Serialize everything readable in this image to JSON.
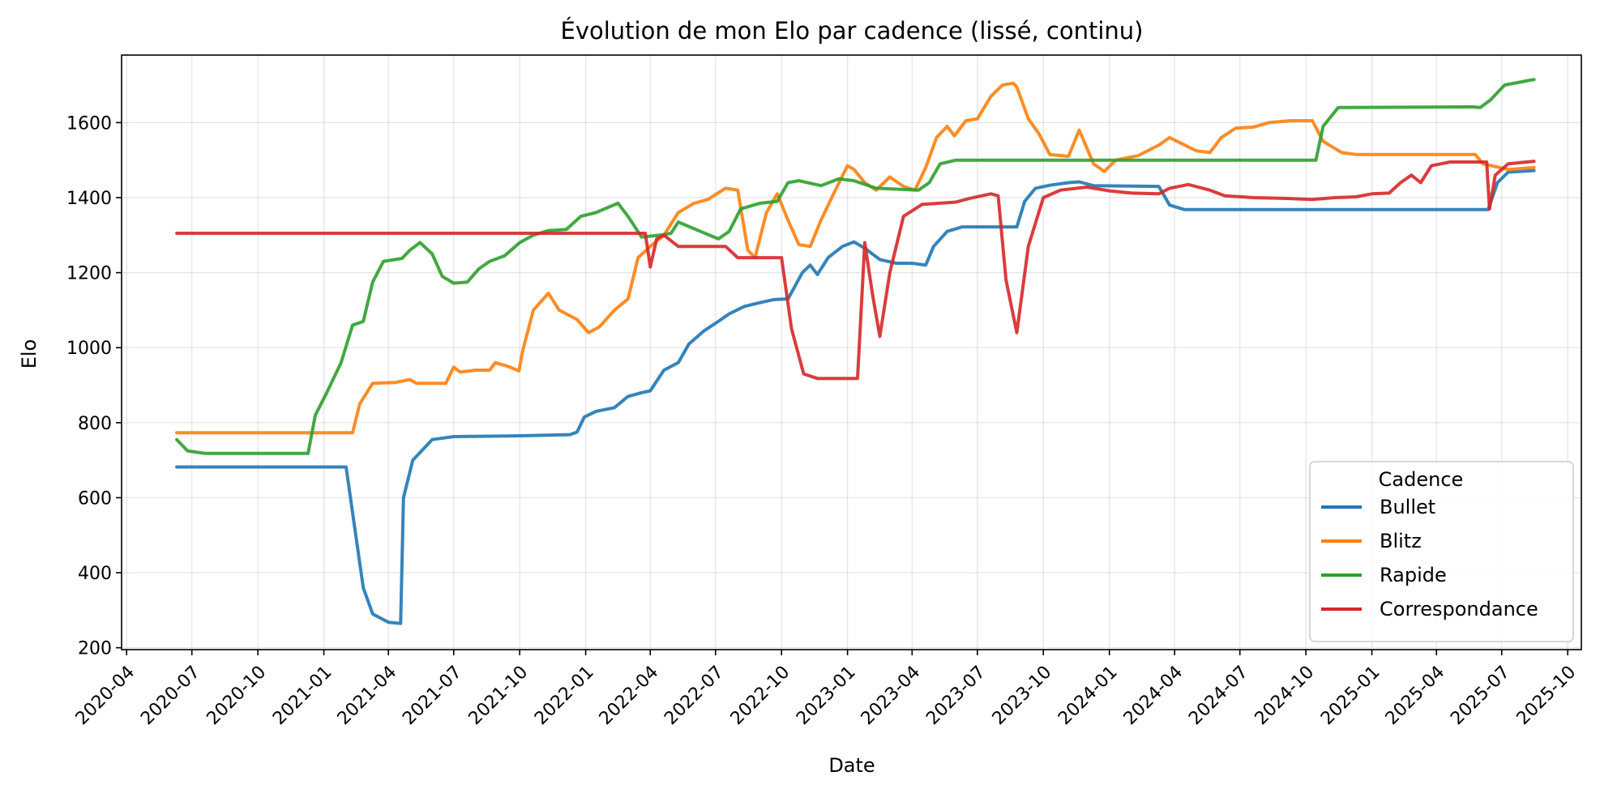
{
  "chart_data": {
    "type": "line",
    "title": "Évolution de mon Elo par cadence (lissé, continu)",
    "xlabel": "Date",
    "ylabel": "Elo",
    "x_type": "date",
    "xlim": [
      "2020-03-25",
      "2025-10-20"
    ],
    "ylim": [
      195,
      1780
    ],
    "yticks": [
      200,
      400,
      600,
      800,
      1000,
      1200,
      1400,
      1600
    ],
    "xticks": [
      "2020-04",
      "2020-07",
      "2020-10",
      "2021-01",
      "2021-04",
      "2021-07",
      "2021-10",
      "2022-01",
      "2022-04",
      "2022-07",
      "2022-10",
      "2023-01",
      "2023-04",
      "2023-07",
      "2023-10",
      "2024-01",
      "2024-04",
      "2024-07",
      "2024-10",
      "2025-01",
      "2025-04",
      "2025-07",
      "2025-10"
    ],
    "grid": true,
    "legend": {
      "title": "Cadence",
      "position": "lower-right"
    },
    "series": [
      {
        "name": "Bullet",
        "color": "#1f77b4",
        "points": [
          [
            "2020-06-10",
            682
          ],
          [
            "2021-02-01",
            682
          ],
          [
            "2021-02-10",
            560
          ],
          [
            "2021-02-25",
            360
          ],
          [
            "2021-03-10",
            290
          ],
          [
            "2021-04-01",
            268
          ],
          [
            "2021-04-18",
            265
          ],
          [
            "2021-04-22",
            600
          ],
          [
            "2021-05-05",
            700
          ],
          [
            "2021-06-01",
            755
          ],
          [
            "2021-07-01",
            763
          ],
          [
            "2021-10-01",
            765
          ],
          [
            "2021-12-10",
            768
          ],
          [
            "2021-12-20",
            775
          ],
          [
            "2021-12-30",
            815
          ],
          [
            "2022-01-15",
            830
          ],
          [
            "2022-02-10",
            840
          ],
          [
            "2022-03-01",
            870
          ],
          [
            "2022-03-20",
            880
          ],
          [
            "2022-04-01",
            885
          ],
          [
            "2022-04-20",
            940
          ],
          [
            "2022-05-10",
            960
          ],
          [
            "2022-05-25",
            1010
          ],
          [
            "2022-06-15",
            1045
          ],
          [
            "2022-07-01",
            1065
          ],
          [
            "2022-07-20",
            1090
          ],
          [
            "2022-08-10",
            1110
          ],
          [
            "2022-09-01",
            1120
          ],
          [
            "2022-09-20",
            1128
          ],
          [
            "2022-10-10",
            1130
          ],
          [
            "2022-10-30",
            1200
          ],
          [
            "2022-11-10",
            1220
          ],
          [
            "2022-11-20",
            1195
          ],
          [
            "2022-12-05",
            1240
          ],
          [
            "2022-12-25",
            1270
          ],
          [
            "2023-01-10",
            1282
          ],
          [
            "2023-01-25",
            1265
          ],
          [
            "2023-02-15",
            1235
          ],
          [
            "2023-03-10",
            1225
          ],
          [
            "2023-04-01",
            1225
          ],
          [
            "2023-04-20",
            1220
          ],
          [
            "2023-05-01",
            1270
          ],
          [
            "2023-05-20",
            1310
          ],
          [
            "2023-06-10",
            1322
          ],
          [
            "2023-08-25",
            1322
          ],
          [
            "2023-09-05",
            1390
          ],
          [
            "2023-09-20",
            1425
          ],
          [
            "2023-10-10",
            1433
          ],
          [
            "2023-11-05",
            1440
          ],
          [
            "2023-11-20",
            1442
          ],
          [
            "2023-12-10",
            1432
          ],
          [
            "2024-03-10",
            1430
          ],
          [
            "2024-03-25",
            1380
          ],
          [
            "2024-04-15",
            1368
          ],
          [
            "2025-06-12",
            1368
          ],
          [
            "2025-06-25",
            1440
          ],
          [
            "2025-07-10",
            1468
          ],
          [
            "2025-08-15",
            1472
          ]
        ]
      },
      {
        "name": "Blitz",
        "color": "#ff7f0e",
        "points": [
          [
            "2020-06-10",
            773
          ],
          [
            "2021-02-10",
            773
          ],
          [
            "2021-02-20",
            850
          ],
          [
            "2021-03-10",
            905
          ],
          [
            "2021-04-10",
            907
          ],
          [
            "2021-05-01",
            915
          ],
          [
            "2021-05-10",
            905
          ],
          [
            "2021-06-20",
            905
          ],
          [
            "2021-07-01",
            948
          ],
          [
            "2021-07-10",
            935
          ],
          [
            "2021-08-01",
            940
          ],
          [
            "2021-08-20",
            940
          ],
          [
            "2021-08-28",
            960
          ],
          [
            "2021-09-15",
            950
          ],
          [
            "2021-09-30",
            938
          ],
          [
            "2021-10-05",
            990
          ],
          [
            "2021-10-20",
            1100
          ],
          [
            "2021-11-10",
            1145
          ],
          [
            "2021-11-25",
            1100
          ],
          [
            "2021-12-20",
            1075
          ],
          [
            "2022-01-05",
            1040
          ],
          [
            "2022-01-20",
            1055
          ],
          [
            "2022-02-10",
            1100
          ],
          [
            "2022-03-01",
            1130
          ],
          [
            "2022-03-15",
            1240
          ],
          [
            "2022-04-01",
            1270
          ],
          [
            "2022-04-20",
            1300
          ],
          [
            "2022-05-10",
            1360
          ],
          [
            "2022-06-01",
            1385
          ],
          [
            "2022-06-20",
            1395
          ],
          [
            "2022-07-15",
            1425
          ],
          [
            "2022-08-01",
            1420
          ],
          [
            "2022-08-15",
            1260
          ],
          [
            "2022-08-25",
            1240
          ],
          [
            "2022-09-10",
            1360
          ],
          [
            "2022-09-25",
            1410
          ],
          [
            "2022-10-10",
            1340
          ],
          [
            "2022-10-25",
            1275
          ],
          [
            "2022-11-10",
            1270
          ],
          [
            "2022-11-25",
            1340
          ],
          [
            "2022-12-15",
            1420
          ],
          [
            "2023-01-01",
            1485
          ],
          [
            "2023-01-10",
            1475
          ],
          [
            "2023-01-25",
            1440
          ],
          [
            "2023-02-10",
            1420
          ],
          [
            "2023-03-01",
            1455
          ],
          [
            "2023-03-20",
            1430
          ],
          [
            "2023-04-05",
            1420
          ],
          [
            "2023-04-20",
            1480
          ],
          [
            "2023-05-05",
            1560
          ],
          [
            "2023-05-20",
            1590
          ],
          [
            "2023-05-30",
            1565
          ],
          [
            "2023-06-15",
            1605
          ],
          [
            "2023-07-01",
            1610
          ],
          [
            "2023-07-20",
            1670
          ],
          [
            "2023-08-05",
            1700
          ],
          [
            "2023-08-20",
            1705
          ],
          [
            "2023-08-25",
            1695
          ],
          [
            "2023-09-10",
            1610
          ],
          [
            "2023-09-25",
            1570
          ],
          [
            "2023-10-10",
            1515
          ],
          [
            "2023-11-05",
            1510
          ],
          [
            "2023-11-20",
            1580
          ],
          [
            "2023-12-10",
            1490
          ],
          [
            "2023-12-25",
            1470
          ],
          [
            "2024-01-10",
            1500
          ],
          [
            "2024-02-10",
            1512
          ],
          [
            "2024-03-10",
            1540
          ],
          [
            "2024-03-25",
            1560
          ],
          [
            "2024-04-10",
            1545
          ],
          [
            "2024-05-01",
            1525
          ],
          [
            "2024-05-20",
            1520
          ],
          [
            "2024-06-05",
            1560
          ],
          [
            "2024-06-25",
            1585
          ],
          [
            "2024-07-20",
            1588
          ],
          [
            "2024-08-10",
            1600
          ],
          [
            "2024-09-10",
            1605
          ],
          [
            "2024-10-10",
            1605
          ],
          [
            "2024-10-25",
            1550
          ],
          [
            "2024-11-20",
            1520
          ],
          [
            "2024-12-10",
            1515
          ],
          [
            "2025-05-25",
            1515
          ],
          [
            "2025-06-05",
            1490
          ],
          [
            "2025-07-10",
            1475
          ],
          [
            "2025-08-15",
            1480
          ]
        ]
      },
      {
        "name": "Rapide",
        "color": "#2ca02c",
        "points": [
          [
            "2020-06-10",
            755
          ],
          [
            "2020-06-25",
            725
          ],
          [
            "2020-07-20",
            718
          ],
          [
            "2020-12-10",
            718
          ],
          [
            "2020-12-20",
            820
          ],
          [
            "2021-01-05",
            880
          ],
          [
            "2021-01-25",
            960
          ],
          [
            "2021-02-10",
            1060
          ],
          [
            "2021-02-25",
            1070
          ],
          [
            "2021-03-10",
            1175
          ],
          [
            "2021-03-25",
            1230
          ],
          [
            "2021-04-20",
            1238
          ],
          [
            "2021-05-01",
            1260
          ],
          [
            "2021-05-15",
            1280
          ],
          [
            "2021-06-01",
            1250
          ],
          [
            "2021-06-15",
            1190
          ],
          [
            "2021-07-01",
            1172
          ],
          [
            "2021-07-20",
            1175
          ],
          [
            "2021-08-05",
            1210
          ],
          [
            "2021-08-20",
            1230
          ],
          [
            "2021-09-10",
            1245
          ],
          [
            "2021-10-01",
            1280
          ],
          [
            "2021-10-20",
            1300
          ],
          [
            "2021-11-10",
            1312
          ],
          [
            "2021-12-05",
            1315
          ],
          [
            "2021-12-25",
            1350
          ],
          [
            "2022-01-15",
            1360
          ],
          [
            "2022-02-15",
            1385
          ],
          [
            "2022-03-01",
            1350
          ],
          [
            "2022-03-20",
            1295
          ],
          [
            "2022-04-15",
            1300
          ],
          [
            "2022-04-30",
            1305
          ],
          [
            "2022-05-10",
            1335
          ],
          [
            "2022-06-10",
            1310
          ],
          [
            "2022-07-05",
            1290
          ],
          [
            "2022-07-20",
            1310
          ],
          [
            "2022-08-05",
            1370
          ],
          [
            "2022-09-01",
            1385
          ],
          [
            "2022-09-25",
            1390
          ],
          [
            "2022-10-10",
            1440
          ],
          [
            "2022-10-25",
            1445
          ],
          [
            "2022-11-25",
            1432
          ],
          [
            "2022-12-20",
            1450
          ],
          [
            "2023-01-10",
            1445
          ],
          [
            "2023-02-10",
            1425
          ],
          [
            "2023-04-10",
            1420
          ],
          [
            "2023-04-25",
            1440
          ],
          [
            "2023-05-10",
            1490
          ],
          [
            "2023-06-01",
            1500
          ],
          [
            "2024-10-15",
            1500
          ],
          [
            "2024-10-25",
            1590
          ],
          [
            "2024-11-15",
            1640
          ],
          [
            "2025-05-20",
            1642
          ],
          [
            "2025-06-01",
            1640
          ],
          [
            "2025-06-15",
            1660
          ],
          [
            "2025-07-05",
            1700
          ],
          [
            "2025-08-15",
            1715
          ]
        ]
      },
      {
        "name": "Correspondance",
        "color": "#d62728",
        "points": [
          [
            "2020-06-10",
            1305
          ],
          [
            "2022-03-25",
            1305
          ],
          [
            "2022-04-01",
            1215
          ],
          [
            "2022-04-10",
            1290
          ],
          [
            "2022-04-20",
            1300
          ],
          [
            "2022-05-10",
            1270
          ],
          [
            "2022-07-15",
            1270
          ],
          [
            "2022-08-01",
            1240
          ],
          [
            "2022-10-01",
            1240
          ],
          [
            "2022-10-15",
            1050
          ],
          [
            "2022-11-01",
            930
          ],
          [
            "2022-11-20",
            918
          ],
          [
            "2023-01-15",
            918
          ],
          [
            "2023-01-25",
            1280
          ],
          [
            "2023-02-05",
            1140
          ],
          [
            "2023-02-15",
            1030
          ],
          [
            "2023-03-01",
            1200
          ],
          [
            "2023-03-20",
            1350
          ],
          [
            "2023-04-15",
            1382
          ],
          [
            "2023-06-01",
            1388
          ],
          [
            "2023-06-20",
            1398
          ],
          [
            "2023-07-20",
            1410
          ],
          [
            "2023-07-30",
            1405
          ],
          [
            "2023-08-10",
            1180
          ],
          [
            "2023-08-25",
            1040
          ],
          [
            "2023-09-10",
            1270
          ],
          [
            "2023-10-01",
            1400
          ],
          [
            "2023-10-25",
            1420
          ],
          [
            "2023-12-01",
            1428
          ],
          [
            "2024-01-01",
            1418
          ],
          [
            "2024-02-01",
            1412
          ],
          [
            "2024-03-10",
            1410
          ],
          [
            "2024-03-25",
            1425
          ],
          [
            "2024-04-20",
            1435
          ],
          [
            "2024-05-20",
            1420
          ],
          [
            "2024-06-10",
            1405
          ],
          [
            "2024-07-20",
            1400
          ],
          [
            "2024-09-01",
            1398
          ],
          [
            "2024-10-10",
            1395
          ],
          [
            "2024-11-10",
            1400
          ],
          [
            "2024-12-10",
            1402
          ],
          [
            "2025-01-01",
            1410
          ],
          [
            "2025-01-25",
            1412
          ],
          [
            "2025-02-10",
            1440
          ],
          [
            "2025-02-25",
            1460
          ],
          [
            "2025-03-10",
            1440
          ],
          [
            "2025-03-25",
            1485
          ],
          [
            "2025-04-20",
            1495
          ],
          [
            "2025-06-10",
            1495
          ],
          [
            "2025-06-14",
            1370
          ],
          [
            "2025-06-22",
            1460
          ],
          [
            "2025-07-10",
            1490
          ],
          [
            "2025-08-15",
            1497
          ]
        ]
      }
    ]
  }
}
